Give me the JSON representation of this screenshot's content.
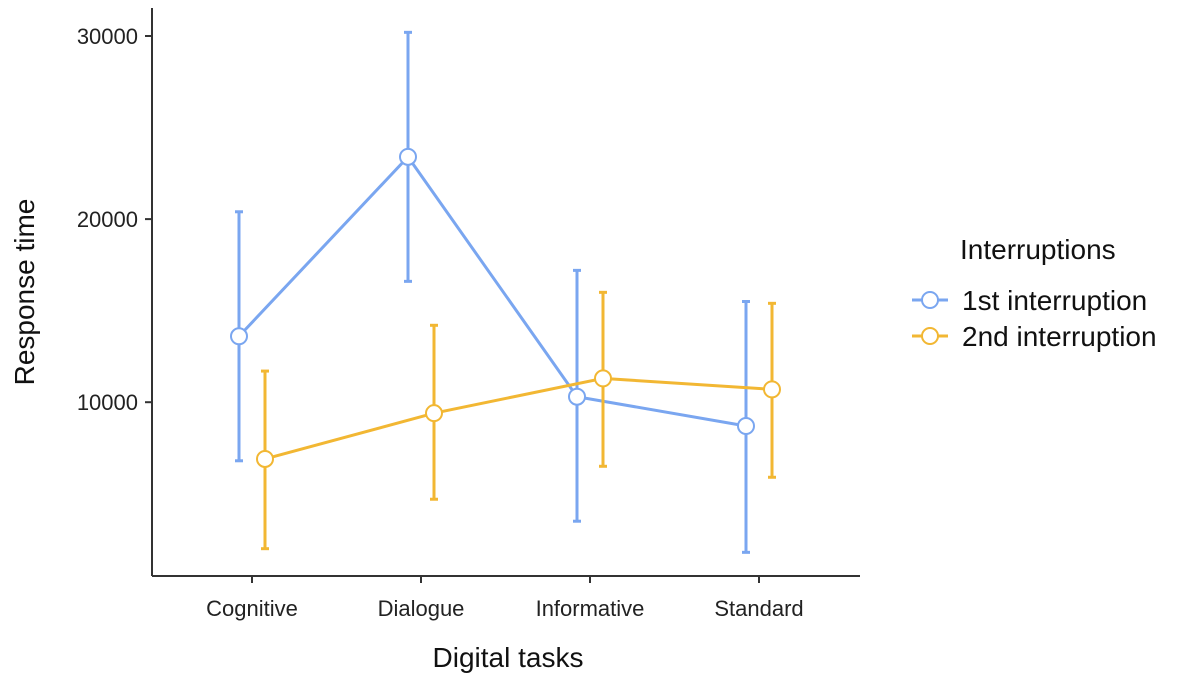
{
  "chart_data": {
    "type": "line",
    "xlabel": "Digital tasks",
    "ylabel": "Response time",
    "categories": [
      "Cognitive",
      "Dialogue",
      "Informative",
      "Standard"
    ],
    "yticks": [
      10000,
      20000,
      30000
    ],
    "ytick_labels": [
      "10000",
      "20000",
      "30000"
    ],
    "ylim": [
      0,
      31500
    ],
    "grid": false,
    "legend": {
      "title": "Interruptions",
      "placement": "right"
    },
    "series": [
      {
        "name": "1st interruption",
        "color": "#7aa6f0",
        "values": [
          13600,
          23400,
          10300,
          8700
        ],
        "error_low": [
          6800,
          16600,
          3500,
          1800
        ],
        "error_high": [
          20400,
          30200,
          17200,
          15500
        ]
      },
      {
        "name": "2nd interruption",
        "color": "#f2b733",
        "values": [
          6900,
          9400,
          11300,
          10700
        ],
        "error_low": [
          2000,
          4700,
          6500,
          5900
        ],
        "error_high": [
          11700,
          14200,
          16000,
          15400
        ]
      }
    ]
  }
}
